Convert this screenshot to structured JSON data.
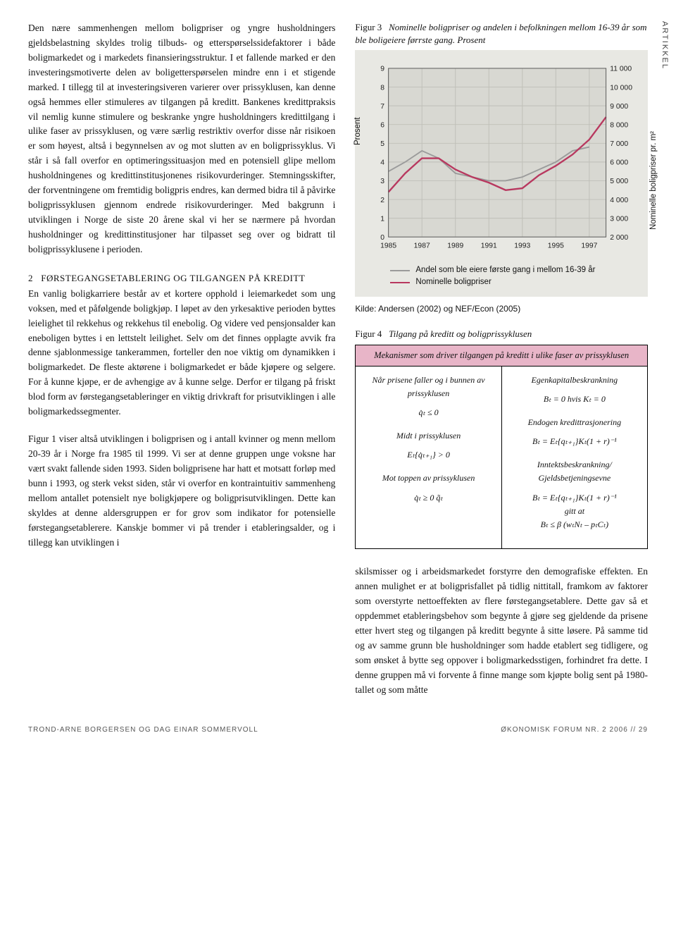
{
  "sideLabel": "ARTIKKEL",
  "leftCol": {
    "para1": "Den nære sammenhengen mellom boligpriser og yngre husholdningers gjeldsbelastning skyldes trolig tilbuds- og etterspørselssidefaktorer i både boligmarkedet og i markedets finansieringsstruktur. I et fallende marked er den investeringsmotiverte delen av boligetterspørselen mindre enn i et stigende marked. I tillegg til at investeringsiveren varierer over prissyklusen, kan denne også hemmes eller stimuleres av tilgangen på kreditt. Bankenes kredittpraksis vil nemlig kunne stimulere og beskranke yngre husholdningers kredittilgang i ulike faser av prissyklusen, og være særlig restriktiv overfor disse når risikoen er som høyest, altså i begynnelsen av og mot slutten av en boligprissyklus. Vi står i så fall overfor en optimeringssituasjon med en potensiell glipe mellom husholdningenes og kredittinstitusjonenes risikovurderinger. Stemningsskifter, der forventningene om fremtidig boligpris endres, kan dermed bidra til å påvirke boligprissyklusen gjennom endrede risikovurderinger. Med bakgrunn i utviklingen i Norge de siste 20 årene skal vi her se nærmere på hvordan husholdninger og kredittinstitusjoner har tilpasset seg over og bidratt til boligprissyklusene i perioden.",
    "sectionNum": "2",
    "sectionTitle": "FØRSTEGANGSETABLERING OG TILGANGEN PÅ KREDITT",
    "para2": "En vanlig boligkarriere består av et kortere opphold i leiemarkedet som ung voksen, med et påfølgende boligkjøp. I løpet av den yrkesaktive perioden byttes leielighet til rekkehus og rekkehus til enebolig. Og videre ved pensjonsalder kan eneboligen byttes i en lettstelt leilighet. Selv om det finnes opplagte avvik fra denne sjablonmessige tankerammen, forteller den noe viktig om dynamikken i boligmarkedet. De fleste aktørene i boligmarkedet er både kjøpere og selgere. For å kunne kjøpe, er de avhengige av å kunne selge. Derfor er tilgang på friskt blod form av førstegangsetableringer en viktig drivkraft for prisutviklingen i alle boligmarkedssegmenter.",
    "para3": "Figur 1 viser altså utviklingen i boligprisen og i antall kvinner og menn mellom 20-39 år i Norge fra 1985 til 1999. Vi ser at denne gruppen unge voksne har vært svakt fallende siden 1993. Siden boligprisene har hatt et motsatt forløp med bunn i 1993, og sterk vekst siden, står vi overfor en kontraintuitiv sammenheng mellom antallet potensielt nye boligkjøpere og boligprisutviklingen. Dette kan skyldes at denne aldersgruppen er for grov som indikator for potensielle førstegangsetablerere. Kanskje bommer vi på trender i etableringsalder, og i tillegg kan utviklingen i"
  },
  "fig3": {
    "label": "Figur 3",
    "title": "Nominelle boligpriser og andelen i befolkningen mellom 16-39 år som ble boligeiere førrste gang. Prosent",
    "yLeftLabel": "Prosent",
    "yRightLabel": "Nominelle boligpriser pr. m²",
    "source": "Kilde: Andersen (2002) og NEF/Econ (2005)",
    "legend": [
      {
        "label": "Andel som ble eiere første gang i mellom 16-39 år",
        "color": "#9b9b9b"
      },
      {
        "label": "Nominelle boligpriser",
        "color": "#b8385f"
      }
    ],
    "chart": {
      "background": "#e8e8e3",
      "plotFill": "#d8d8d2",
      "gridColor": "#bfbfb8",
      "axisColor": "#555",
      "tickFont": 11,
      "ylim": [
        0,
        9
      ],
      "ytickStep": 1,
      "y2lim": [
        2000,
        11000
      ],
      "y2tickStep": 1000,
      "xticks": [
        1985,
        1987,
        1989,
        1991,
        1993,
        1995,
        1997
      ],
      "series": [
        {
          "name": "andel",
          "color": "#9b9b9b",
          "width": 2,
          "axis": "left",
          "data": [
            [
              1985,
              3.5
            ],
            [
              1986,
              4.0
            ],
            [
              1987,
              4.6
            ],
            [
              1988,
              4.2
            ],
            [
              1989,
              3.4
            ],
            [
              1990,
              3.2
            ],
            [
              1991,
              3.0
            ],
            [
              1992,
              3.0
            ],
            [
              1993,
              3.2
            ],
            [
              1994,
              3.6
            ],
            [
              1995,
              4.0
            ],
            [
              1996,
              4.6
            ],
            [
              1997,
              4.8
            ]
          ]
        },
        {
          "name": "nominelle",
          "color": "#b8385f",
          "width": 2.5,
          "axis": "right",
          "data": [
            [
              1985,
              4400
            ],
            [
              1986,
              5400
            ],
            [
              1987,
              6200
            ],
            [
              1988,
              6200
            ],
            [
              1989,
              5600
            ],
            [
              1990,
              5200
            ],
            [
              1991,
              4900
            ],
            [
              1992,
              4500
            ],
            [
              1993,
              4600
            ],
            [
              1994,
              5300
            ],
            [
              1995,
              5800
            ],
            [
              1996,
              6400
            ],
            [
              1997,
              7200
            ],
            [
              1998,
              8400
            ]
          ]
        }
      ]
    }
  },
  "fig4": {
    "label": "Figur 4",
    "title": "Tilgang på kreditt og boligprissyklusen",
    "header": "Mekanismer som driver tilgangen på kreditt i ulike faser av prissyklusen",
    "rows": [
      {
        "leftLabel": "Når prisene faller og i bunnen av prissyklusen",
        "rightLabel": "Egenkapitalbeskrankning",
        "leftMath": "q̇ₜ ≤ 0",
        "rightMath": "Bₜ = 0 hvis Kₜ = 0"
      },
      {
        "leftLabel": "Midt i prissyklusen",
        "rightLabel": "Endogen kredittrasjonering",
        "leftMath": "Eₜ{q̇ₜ₊₁} > 0",
        "rightMath": "Bₜ = Eₜ{qₜ₊₁}Kₜ(1 + r)⁻¹"
      },
      {
        "leftLabel": "Mot toppen av prissyklusen",
        "rightLabel": "Inntektsbeskrankning/ Gjeldsbetjeningsevne",
        "leftMath": "q̇ₜ ≥ 0 q̃ₜ",
        "rightMath": "Bₜ = Eₜ{qₜ₊₁}Kₜ(1 + r)⁻¹\ngitt at\nBₜ ≤ β (wₜNₜ – pₜCₜ)"
      }
    ]
  },
  "rightBody": "skilsmisser og i arbeidsmarkedet forstyrre den demografiske effekten. En annen mulighet er at boligprisfallet på tidlig nittitall, framkom av faktorer som overstyrte nettoeffekten av flere førstegangsetablere. Dette gav så et oppdemmet etableringsbehov som begynte å gjøre seg gjeldende da prisene etter hvert steg og tilgangen på kreditt begynte å sitte løsere. På samme tid og av samme grunn ble husholdninger som hadde etablert seg tidligere, og som ønsket å bytte seg oppover i boligmarkedsstigen, forhindret fra dette. I denne gruppen må vi forvente å finne mange som kjøpte bolig sent på 1980-tallet og som måtte",
  "footer": {
    "left": "TROND-ARNE BORGERSEN OG DAG EINAR SOMMERVOLL",
    "right": "ØKONOMISK FORUM NR. 2 2006 // 29"
  }
}
